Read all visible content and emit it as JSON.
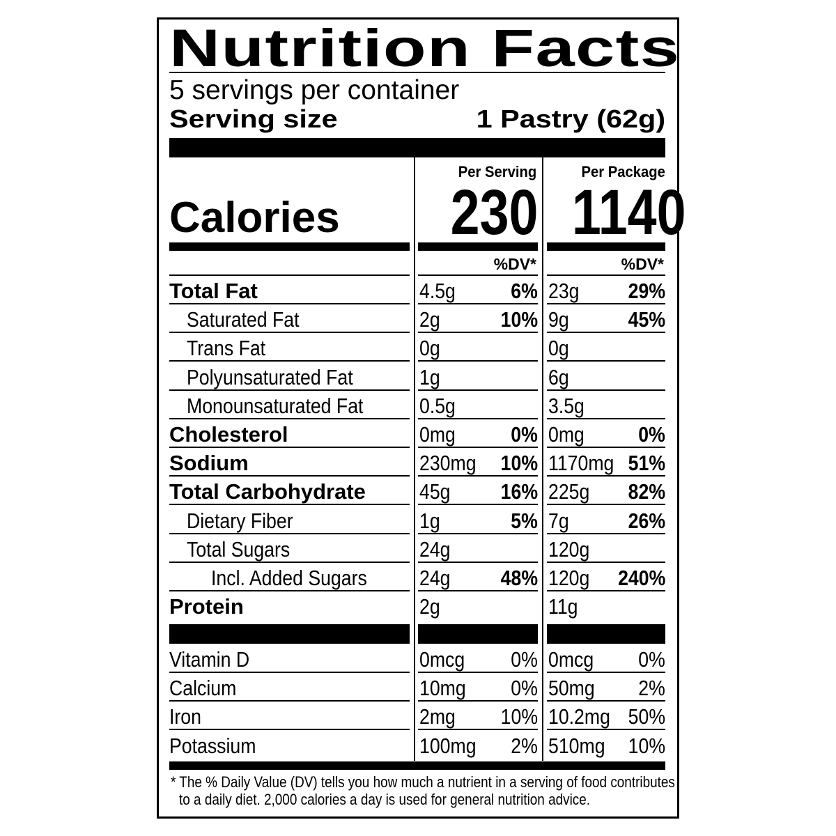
{
  "label": {
    "title": "Nutrition Facts",
    "servings_per_container": "5 servings per container",
    "serving_size_label": "Serving size",
    "serving_size_value": "1 Pastry (62g)",
    "calories_label": "Calories",
    "columns": [
      {
        "header": "Per Serving",
        "calories": "230",
        "dv_header": "%DV*"
      },
      {
        "header": "Per Package",
        "calories": "1140",
        "dv_header": "%DV*"
      }
    ],
    "nutrients": [
      {
        "name": "Total Fat",
        "bold": true,
        "indent": 0,
        "serving": {
          "amount": "4.5g",
          "dv": "6%"
        },
        "package": {
          "amount": "23g",
          "dv": "29%"
        }
      },
      {
        "name": "Saturated Fat",
        "bold": false,
        "indent": 1,
        "serving": {
          "amount": "2g",
          "dv": "10%"
        },
        "package": {
          "amount": "9g",
          "dv": "45%"
        }
      },
      {
        "name": "Trans Fat",
        "bold": false,
        "indent": 1,
        "serving": {
          "amount": "0g",
          "dv": ""
        },
        "package": {
          "amount": "0g",
          "dv": ""
        }
      },
      {
        "name": "Polyunsaturated Fat",
        "bold": false,
        "indent": 1,
        "serving": {
          "amount": "1g",
          "dv": ""
        },
        "package": {
          "amount": "6g",
          "dv": ""
        }
      },
      {
        "name": "Monounsaturated Fat",
        "bold": false,
        "indent": 1,
        "serving": {
          "amount": "0.5g",
          "dv": ""
        },
        "package": {
          "amount": "3.5g",
          "dv": ""
        }
      },
      {
        "name": "Cholesterol",
        "bold": true,
        "indent": 0,
        "serving": {
          "amount": "0mg",
          "dv": "0%"
        },
        "package": {
          "amount": "0mg",
          "dv": "0%"
        }
      },
      {
        "name": "Sodium",
        "bold": true,
        "indent": 0,
        "serving": {
          "amount": "230mg",
          "dv": "10%"
        },
        "package": {
          "amount": "1170mg",
          "dv": "51%"
        }
      },
      {
        "name": "Total Carbohydrate",
        "bold": true,
        "indent": 0,
        "serving": {
          "amount": "45g",
          "dv": "16%"
        },
        "package": {
          "amount": "225g",
          "dv": "82%"
        }
      },
      {
        "name": "Dietary Fiber",
        "bold": false,
        "indent": 1,
        "serving": {
          "amount": "1g",
          "dv": "5%"
        },
        "package": {
          "amount": "7g",
          "dv": "26%"
        }
      },
      {
        "name": "Total Sugars",
        "bold": false,
        "indent": 1,
        "serving": {
          "amount": "24g",
          "dv": ""
        },
        "package": {
          "amount": "120g",
          "dv": ""
        }
      },
      {
        "name": "Incl. Added Sugars",
        "bold": false,
        "indent": 2,
        "serving": {
          "amount": "24g",
          "dv": "48%"
        },
        "package": {
          "amount": "120g",
          "dv": "240%"
        }
      },
      {
        "name": "Protein",
        "bold": true,
        "indent": 0,
        "serving": {
          "amount": "2g",
          "dv": ""
        },
        "package": {
          "amount": "11g",
          "dv": ""
        }
      }
    ],
    "vitamins": [
      {
        "name": "Vitamin D",
        "serving": {
          "amount": "0mcg",
          "dv": "0%"
        },
        "package": {
          "amount": "0mcg",
          "dv": "0%"
        }
      },
      {
        "name": "Calcium",
        "serving": {
          "amount": "10mg",
          "dv": "0%"
        },
        "package": {
          "amount": "50mg",
          "dv": "2%"
        }
      },
      {
        "name": "Iron",
        "serving": {
          "amount": "2mg",
          "dv": "10%"
        },
        "package": {
          "amount": "10.2mg",
          "dv": "50%"
        }
      },
      {
        "name": "Potassium",
        "serving": {
          "amount": "100mg",
          "dv": "2%"
        },
        "package": {
          "amount": "510mg",
          "dv": "10%"
        }
      }
    ],
    "footnote_line1": "* The % Daily Value (DV) tells you how much a nutrient in a serving of food contributes",
    "footnote_line2": "to a daily diet. 2,000 calories a day is used for general nutrition advice."
  }
}
